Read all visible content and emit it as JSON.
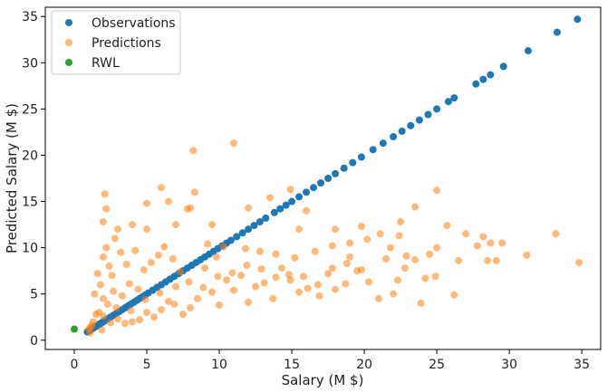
{
  "chart_data": {
    "type": "scatter",
    "xlabel": "Salary (M $)",
    "ylabel": "Predicted Salary (M $)",
    "xlim": [
      -2.0,
      36.3
    ],
    "ylim": [
      -1.0,
      36.0
    ],
    "xticks": [
      0,
      5,
      10,
      15,
      20,
      25,
      30,
      35
    ],
    "yticks": [
      0,
      5,
      10,
      15,
      20,
      25,
      30,
      35
    ],
    "grid": false,
    "legend_position": "top-left",
    "series": [
      {
        "name": "Observations",
        "color": "#1f77b4",
        "alpha": 1.0,
        "points": [
          [
            0.9,
            0.9
          ],
          [
            1.0,
            1.0
          ],
          [
            1.1,
            1.1
          ],
          [
            1.2,
            1.2
          ],
          [
            1.3,
            1.3
          ],
          [
            1.4,
            1.4
          ],
          [
            1.5,
            1.5
          ],
          [
            1.6,
            1.6
          ],
          [
            1.7,
            1.7
          ],
          [
            1.8,
            1.8
          ],
          [
            1.9,
            1.9
          ],
          [
            2.0,
            2.0
          ],
          [
            2.1,
            2.1
          ],
          [
            2.3,
            2.3
          ],
          [
            2.5,
            2.5
          ],
          [
            2.7,
            2.7
          ],
          [
            2.9,
            2.9
          ],
          [
            3.1,
            3.1
          ],
          [
            3.3,
            3.3
          ],
          [
            3.5,
            3.5
          ],
          [
            3.7,
            3.7
          ],
          [
            3.9,
            3.9
          ],
          [
            4.1,
            4.1
          ],
          [
            4.3,
            4.3
          ],
          [
            4.5,
            4.5
          ],
          [
            4.7,
            4.7
          ],
          [
            4.9,
            4.9
          ],
          [
            5.1,
            5.1
          ],
          [
            5.4,
            5.4
          ],
          [
            5.7,
            5.7
          ],
          [
            6.0,
            6.0
          ],
          [
            6.3,
            6.3
          ],
          [
            6.6,
            6.6
          ],
          [
            6.9,
            6.9
          ],
          [
            7.2,
            7.2
          ],
          [
            7.5,
            7.5
          ],
          [
            7.8,
            7.8
          ],
          [
            8.1,
            8.1
          ],
          [
            8.4,
            8.4
          ],
          [
            8.7,
            8.7
          ],
          [
            9.0,
            9.0
          ],
          [
            9.3,
            9.3
          ],
          [
            9.6,
            9.6
          ],
          [
            9.9,
            9.9
          ],
          [
            10.2,
            10.2
          ],
          [
            10.5,
            10.5
          ],
          [
            10.8,
            10.8
          ],
          [
            11.2,
            11.2
          ],
          [
            11.6,
            11.6
          ],
          [
            12.0,
            12.0
          ],
          [
            12.4,
            12.4
          ],
          [
            12.8,
            12.8
          ],
          [
            13.2,
            13.2
          ],
          [
            13.8,
            13.8
          ],
          [
            14.2,
            14.2
          ],
          [
            14.6,
            14.6
          ],
          [
            15.0,
            15.0
          ],
          [
            15.5,
            15.5
          ],
          [
            16.0,
            16.0
          ],
          [
            16.5,
            16.5
          ],
          [
            17.0,
            17.0
          ],
          [
            17.5,
            17.5
          ],
          [
            18.0,
            18.0
          ],
          [
            18.6,
            18.6
          ],
          [
            19.2,
            19.2
          ],
          [
            19.8,
            19.8
          ],
          [
            20.6,
            20.6
          ],
          [
            21.3,
            21.3
          ],
          [
            22.0,
            22.0
          ],
          [
            22.6,
            22.6
          ],
          [
            23.2,
            23.2
          ],
          [
            23.8,
            23.8
          ],
          [
            24.4,
            24.4
          ],
          [
            25.0,
            25.0
          ],
          [
            25.8,
            25.8
          ],
          [
            26.2,
            26.2
          ],
          [
            27.7,
            27.7
          ],
          [
            28.2,
            28.2
          ],
          [
            28.7,
            28.7
          ],
          [
            29.6,
            29.6
          ],
          [
            31.3,
            31.3
          ],
          [
            33.3,
            33.3
          ],
          [
            34.7,
            34.7
          ]
        ]
      },
      {
        "name": "Predictions",
        "color": "#ff7f0e",
        "alpha": 0.55,
        "points": [
          [
            8.2,
            20.5
          ],
          [
            11.0,
            21.3
          ],
          [
            2.1,
            15.8
          ],
          [
            6.0,
            16.5
          ],
          [
            5.0,
            14.8
          ],
          [
            8.3,
            16.0
          ],
          [
            14.9,
            16.3
          ],
          [
            25.0,
            16.2
          ],
          [
            6.5,
            15.0
          ],
          [
            2.2,
            14.2
          ],
          [
            2.0,
            12.8
          ],
          [
            3.0,
            12.0
          ],
          [
            4.0,
            12.5
          ],
          [
            5.0,
            12.0
          ],
          [
            7.0,
            12.5
          ],
          [
            7.8,
            14.2
          ],
          [
            8.0,
            14.3
          ],
          [
            9.5,
            12.5
          ],
          [
            13.5,
            15.4
          ],
          [
            12.0,
            14.3
          ],
          [
            16.0,
            14.0
          ],
          [
            15.5,
            12.0
          ],
          [
            18.0,
            12.0
          ],
          [
            19.0,
            10.5
          ],
          [
            19.8,
            12.3
          ],
          [
            21.1,
            11.5
          ],
          [
            22.5,
            12.8
          ],
          [
            22.4,
            11.3
          ],
          [
            23.5,
            14.4
          ],
          [
            25.7,
            12.4
          ],
          [
            27.0,
            11.5
          ],
          [
            28.2,
            11.2
          ],
          [
            29.5,
            10.5
          ],
          [
            33.2,
            11.5
          ],
          [
            34.8,
            8.4
          ],
          [
            31.2,
            9.2
          ],
          [
            28.5,
            8.6
          ],
          [
            29.1,
            8.6
          ],
          [
            27.8,
            10.2
          ],
          [
            28.7,
            10.5
          ],
          [
            25.0,
            10.0
          ],
          [
            24.5,
            9.3
          ],
          [
            23.5,
            8.7
          ],
          [
            24.2,
            6.7
          ],
          [
            23.9,
            4.0
          ],
          [
            26.2,
            4.9
          ],
          [
            22.8,
            7.8
          ],
          [
            22.3,
            6.5
          ],
          [
            22.0,
            5.0
          ],
          [
            21.0,
            4.5
          ],
          [
            20.3,
            6.3
          ],
          [
            19.5,
            7.5
          ],
          [
            18.7,
            6.1
          ],
          [
            18.0,
            5.5
          ],
          [
            17.5,
            7.2
          ],
          [
            16.9,
            4.8
          ],
          [
            16.1,
            5.6
          ],
          [
            15.5,
            5.2
          ],
          [
            14.9,
            6.5
          ],
          [
            14.3,
            7.8
          ],
          [
            13.7,
            4.5
          ],
          [
            13.1,
            6.2
          ],
          [
            12.5,
            5.8
          ],
          [
            12.0,
            4.1
          ],
          [
            11.5,
            7.0
          ],
          [
            11.0,
            5.4
          ],
          [
            10.5,
            6.5
          ],
          [
            10.0,
            3.8
          ],
          [
            9.5,
            5.2
          ],
          [
            9.0,
            7.8
          ],
          [
            8.5,
            4.5
          ],
          [
            8.0,
            3.5
          ],
          [
            7.5,
            2.8
          ],
          [
            7.0,
            5.8
          ],
          [
            6.5,
            4.2
          ],
          [
            6.0,
            3.3
          ],
          [
            5.5,
            2.5
          ],
          [
            5.0,
            3.0
          ],
          [
            4.5,
            2.2
          ],
          [
            4.0,
            2.0
          ],
          [
            3.5,
            1.8
          ],
          [
            3.0,
            2.3
          ],
          [
            2.5,
            1.9
          ],
          [
            2.0,
            2.6
          ],
          [
            1.7,
            3.0
          ],
          [
            1.5,
            2.8
          ],
          [
            1.3,
            2.0
          ],
          [
            1.2,
            1.6
          ],
          [
            1.1,
            1.4
          ],
          [
            1.0,
            1.2
          ],
          [
            1.4,
            5.0
          ],
          [
            1.6,
            7.2
          ],
          [
            1.8,
            6.0
          ],
          [
            2.0,
            9.0
          ],
          [
            2.2,
            10.0
          ],
          [
            2.4,
            8.0
          ],
          [
            2.6,
            7.0
          ],
          [
            2.8,
            11.0
          ],
          [
            3.2,
            9.5
          ],
          [
            3.6,
            8.2
          ],
          [
            4.2,
            9.7
          ],
          [
            4.8,
            7.6
          ],
          [
            5.3,
            8.4
          ],
          [
            5.8,
            9.2
          ],
          [
            6.2,
            10.1
          ],
          [
            6.8,
            8.8
          ],
          [
            7.3,
            7.4
          ],
          [
            9.2,
            10.4
          ],
          [
            9.8,
            9.0
          ],
          [
            10.3,
            10.1
          ],
          [
            11.8,
            9.9
          ],
          [
            12.8,
            9.6
          ],
          [
            13.9,
            9.3
          ],
          [
            15.2,
            8.9
          ],
          [
            16.6,
            9.6
          ],
          [
            17.8,
            10.2
          ],
          [
            19.0,
            9.0
          ],
          [
            20.2,
            10.9
          ],
          [
            21.8,
            10.0
          ],
          [
            2.0,
            4.5
          ],
          [
            2.3,
            3.9
          ],
          [
            2.7,
            5.3
          ],
          [
            3.3,
            4.8
          ],
          [
            3.8,
            6.1
          ],
          [
            4.4,
            5.5
          ],
          [
            1.1,
            0.8
          ],
          [
            1.9,
            1.1
          ],
          [
            2.9,
            3.5
          ],
          [
            3.9,
            3.2
          ],
          [
            4.9,
            4.4
          ],
          [
            5.9,
            5.1
          ],
          [
            6.9,
            3.9
          ],
          [
            7.9,
            6.3
          ],
          [
            8.9,
            5.7
          ],
          [
            9.9,
            6.9
          ],
          [
            10.9,
            7.3
          ],
          [
            11.9,
            8.1
          ],
          [
            12.9,
            7.7
          ],
          [
            13.9,
            6.8
          ],
          [
            14.8,
            7.1
          ],
          [
            15.8,
            6.9
          ],
          [
            16.8,
            6.0
          ],
          [
            17.8,
            7.8
          ],
          [
            18.8,
            8.3
          ],
          [
            19.8,
            7.6
          ],
          [
            21.5,
            8.8
          ],
          [
            22.9,
            9.1
          ],
          [
            24.9,
            6.9
          ],
          [
            26.5,
            8.6
          ]
        ]
      },
      {
        "name": "RWL",
        "color": "#2ca02c",
        "alpha": 1.0,
        "points": [
          [
            0.0,
            1.2
          ]
        ]
      }
    ]
  }
}
